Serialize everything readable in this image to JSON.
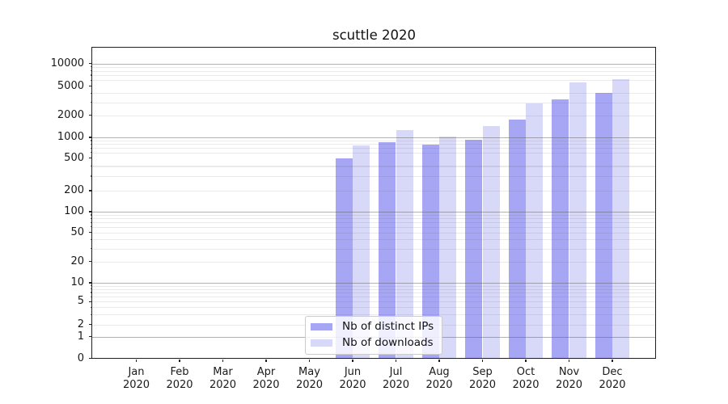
{
  "chart_data": {
    "type": "bar",
    "title": "scuttle 2020",
    "x_tick_months": [
      "Jan",
      "Feb",
      "Mar",
      "Apr",
      "May",
      "Jun",
      "Jul",
      "Aug",
      "Sep",
      "Oct",
      "Nov",
      "Dec"
    ],
    "x_tick_year": "2020",
    "y_axis": {
      "scale": "symlog",
      "tick_values": [
        0,
        1,
        2,
        5,
        10,
        20,
        50,
        100,
        200,
        500,
        1000,
        2000,
        5000,
        10000
      ],
      "major_gridline_values": [
        1,
        10,
        100,
        1000,
        10000
      ],
      "minor_gridline_values": [
        2,
        3,
        4,
        5,
        6,
        7,
        8,
        9,
        20,
        30,
        40,
        50,
        60,
        70,
        80,
        90,
        200,
        300,
        400,
        600,
        700,
        800,
        900,
        2000,
        3000,
        4000,
        6000,
        7000,
        8000,
        9000
      ],
      "range": [
        0,
        13000
      ]
    },
    "series": [
      {
        "name": "Nb of distinct IPs",
        "color": "#a6a6f4",
        "values": [
          null,
          null,
          null,
          null,
          null,
          490,
          860,
          780,
          930,
          1730,
          3250,
          4000
        ]
      },
      {
        "name": "Nb of downloads",
        "color": "#d8d8f8",
        "values": [
          null,
          null,
          null,
          null,
          null,
          760,
          1250,
          1030,
          1420,
          2870,
          5600,
          6200
        ]
      }
    ],
    "legend_position": "lower center"
  },
  "colors": {
    "background": "#ffffff",
    "axis_spine": "#1f1f1f",
    "grid": "#5f5f5f",
    "text": "#1a1a1a",
    "legend_border": "#cccccc"
  }
}
